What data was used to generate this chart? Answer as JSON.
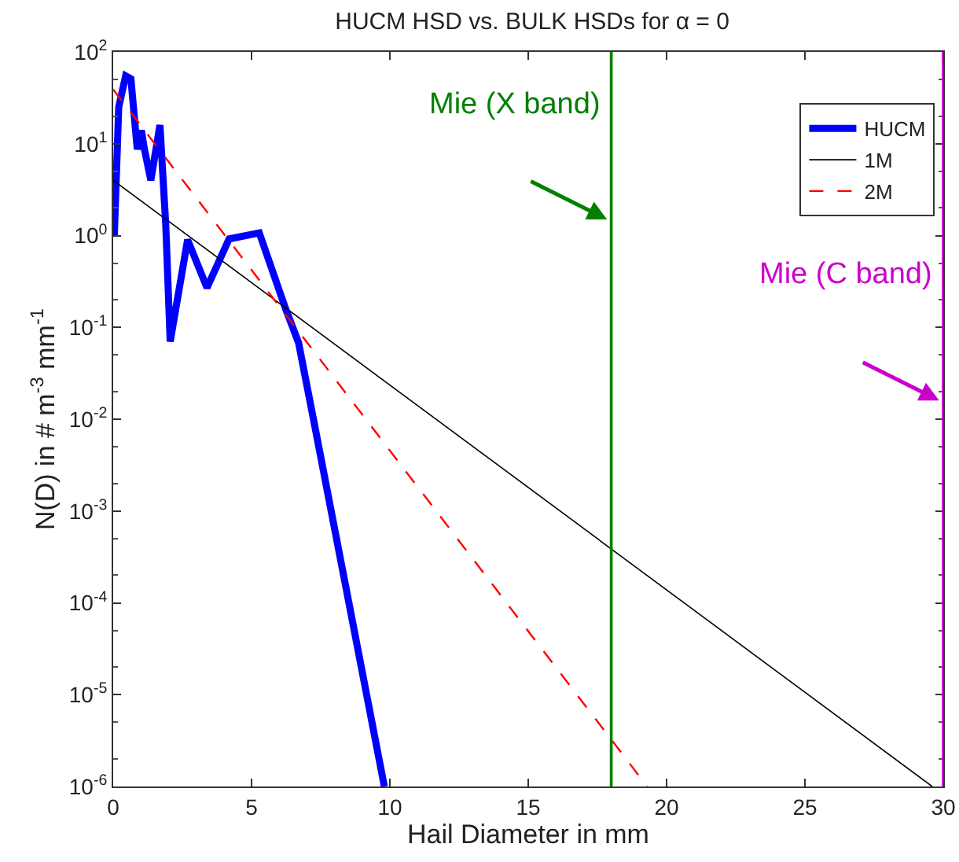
{
  "chart_data": {
    "type": "line",
    "title": "HUCM HSD vs. BULK HSDs for α = 0",
    "xlabel": "Hail Diameter in mm",
    "ylabel": "N(D) in # m$^{-3}$ mm$^{-1}$",
    "log": "y",
    "grid": false,
    "legend": "top right",
    "xlim": [
      0,
      30
    ],
    "xticks": [
      0,
      5,
      10,
      15,
      20,
      25,
      30
    ],
    "ylim": [
      1e-06,
      100
    ],
    "yticks": [
      {
        "value": 1e-06,
        "label": "10$^{-6}$"
      },
      {
        "value": 1e-05,
        "label": "10$^{-5}$"
      },
      {
        "value": 0.0001,
        "label": "10$^{-4}$"
      },
      {
        "value": 0.001,
        "label": "10$^{-3}$"
      },
      {
        "value": 0.01,
        "label": "10$^{-2}$"
      },
      {
        "value": 0.1,
        "label": "10$^{-1}$"
      },
      {
        "value": 1,
        "label": "10$^{0}$"
      },
      {
        "value": 10,
        "label": "10$^{1}$"
      },
      {
        "value": 100,
        "label": "10$^{2}$"
      }
    ],
    "series": [
      {
        "name": "HUCM",
        "color": "#0000ff",
        "line_style": "solid",
        "x": [
          0.04,
          0.2,
          0.45,
          0.64,
          0.87,
          1.02,
          1.12,
          1.36,
          1.69,
          1.9,
          2.06,
          2.69,
          3.39,
          4.19,
          5.28,
          6.23,
          6.7,
          7.3,
          9.8
        ],
        "values": [
          1,
          25,
          55,
          51,
          8.7,
          14,
          9,
          4,
          16,
          1.3,
          0.07,
          0.9,
          0.27,
          0.92,
          1.07,
          0.16,
          0.068,
          0.008,
          1e-06
        ]
      },
      {
        "name": "1M",
        "color": "#000000",
        "line_style": "solid",
        "x": [
          0,
          29.6
        ],
        "values": [
          4,
          1e-06
        ]
      },
      {
        "name": "2M",
        "color": "#ff0000",
        "line_style": "dashed",
        "x": [
          0,
          19.3
        ],
        "values": [
          39,
          1e-06
        ]
      }
    ],
    "ref_lines": [
      {
        "axis": "x",
        "value": 18,
        "label": "Mie (X band)",
        "color": "#008000",
        "line_style": "solid"
      },
      {
        "axis": "x",
        "value": 30,
        "label": "Mie (C band)",
        "color": "#cc00cc",
        "line_style": "solid"
      }
    ]
  }
}
